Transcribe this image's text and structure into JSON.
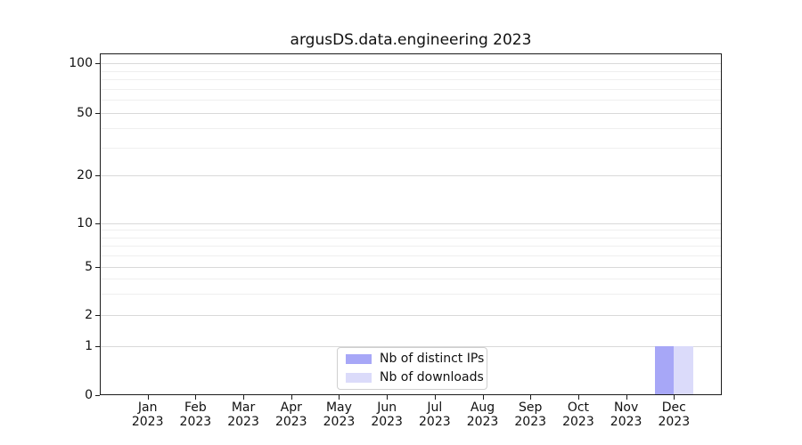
{
  "chart_data": {
    "type": "bar",
    "title": "argusDS.data.engineering 2023",
    "categories": [
      "Jan",
      "Feb",
      "Mar",
      "Apr",
      "May",
      "Jun",
      "Jul",
      "Aug",
      "Sep",
      "Oct",
      "Nov",
      "Dec"
    ],
    "category_year": "2023",
    "series": [
      {
        "name": "Nb of distinct IPs",
        "color": "#a7a7f7",
        "values": [
          0,
          0,
          0,
          0,
          0,
          0,
          0,
          0,
          0,
          0,
          0,
          1
        ]
      },
      {
        "name": "Nb of downloads",
        "color": "#dbdbfa",
        "values": [
          0,
          0,
          0,
          0,
          0,
          0,
          0,
          0,
          0,
          0,
          0,
          1
        ]
      }
    ],
    "yaxis": {
      "ticks": [
        0,
        1,
        2,
        5,
        10,
        20,
        50,
        100
      ],
      "minor_ticks": [
        3,
        4,
        6,
        7,
        8,
        9,
        30,
        40,
        60,
        70,
        80,
        90
      ],
      "scale": "log-like with linear segment from 0 to 1",
      "range": [
        0,
        112
      ]
    },
    "legend": {
      "position": "lower center"
    },
    "grid": "horizontal major and minor, on"
  },
  "colors": {
    "grid_major": "#d9d9d9",
    "grid_minor": "#efefef",
    "spine": "#1b1b1b",
    "background": "#ffffff",
    "bar_distinct_ips": "#a7a7f7",
    "bar_downloads": "#dbdbfa"
  }
}
